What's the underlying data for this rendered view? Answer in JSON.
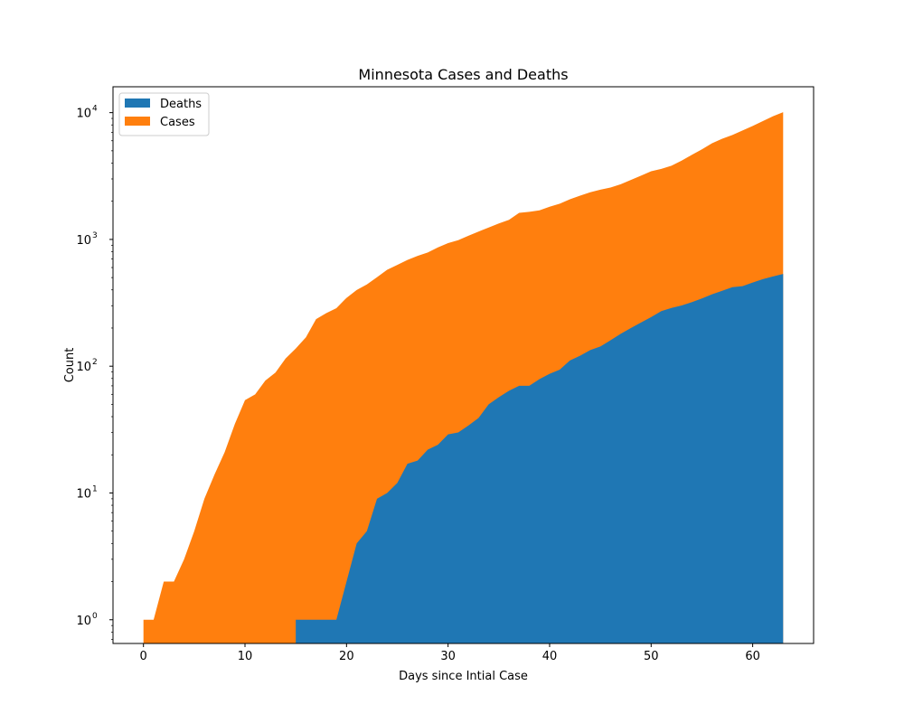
{
  "chart_data": {
    "type": "area",
    "title": "Minnesota Cases and Deaths",
    "xlabel": "Days since Intial Case",
    "ylabel": "Count",
    "yscale": "log",
    "xlim": [
      -3,
      66
    ],
    "ylim": [
      0.65,
      16000
    ],
    "x_ticks": [
      0,
      10,
      20,
      30,
      40,
      50,
      60
    ],
    "y_ticks": [
      {
        "value": 1,
        "base": "10",
        "exp": "0"
      },
      {
        "value": 10,
        "base": "10",
        "exp": "1"
      },
      {
        "value": 100,
        "base": "10",
        "exp": "2"
      },
      {
        "value": 1000,
        "base": "10",
        "exp": "3"
      },
      {
        "value": 10000,
        "base": "10",
        "exp": "4"
      }
    ],
    "legend_position": "top-left",
    "grid": false,
    "series": [
      {
        "name": "Deaths",
        "color": "#1f77b4",
        "x": [
          15,
          16,
          17,
          18,
          19,
          20,
          21,
          22,
          23,
          24,
          25,
          26,
          27,
          28,
          29,
          30,
          31,
          32,
          33,
          34,
          35,
          36,
          37,
          38,
          39,
          40,
          41,
          42,
          43,
          44,
          45,
          46,
          47,
          48,
          49,
          50,
          51,
          52,
          53,
          54,
          55,
          56,
          57,
          58,
          59,
          60,
          61,
          62,
          63
        ],
        "values": [
          1,
          1,
          1,
          1,
          1,
          2,
          4,
          5,
          9,
          10,
          12,
          17,
          18,
          22,
          24,
          29,
          30,
          34,
          39,
          50,
          57,
          64,
          70,
          70,
          79,
          87,
          94,
          111,
          121,
          134,
          143,
          160,
          180,
          200,
          221,
          244,
          272,
          288,
          301,
          320,
          342,
          369,
          393,
          420,
          428,
          457,
          486,
          511,
          534
        ]
      },
      {
        "name": "Cases",
        "color": "#ff7f0e",
        "x": [
          0,
          1,
          2,
          3,
          4,
          5,
          6,
          7,
          8,
          9,
          10,
          11,
          12,
          13,
          14,
          15,
          16,
          17,
          18,
          19,
          20,
          21,
          22,
          23,
          24,
          25,
          26,
          27,
          28,
          29,
          30,
          31,
          32,
          33,
          34,
          35,
          36,
          37,
          38,
          39,
          40,
          41,
          42,
          43,
          44,
          45,
          46,
          47,
          48,
          49,
          50,
          51,
          52,
          53,
          54,
          55,
          56,
          57,
          58,
          59,
          60,
          61,
          62,
          63
        ],
        "values": [
          1,
          1,
          2,
          2,
          3,
          5,
          9,
          14,
          21,
          35,
          54,
          60,
          77,
          89,
          115,
          138,
          169,
          235,
          262,
          287,
          346,
          399,
          441,
          503,
          576,
          629,
          689,
          742,
          789,
          865,
          935,
          986,
          1069,
          1154,
          1242,
          1336,
          1427,
          1621,
          1650,
          1695,
          1809,
          1912,
          2071,
          2213,
          2356,
          2470,
          2567,
          2721,
          2942,
          3185,
          3446,
          3602,
          3816,
          4180,
          4644,
          5136,
          5730,
          6228,
          6663,
          7234,
          7851,
          8579,
          9365,
          10088
        ]
      }
    ]
  }
}
